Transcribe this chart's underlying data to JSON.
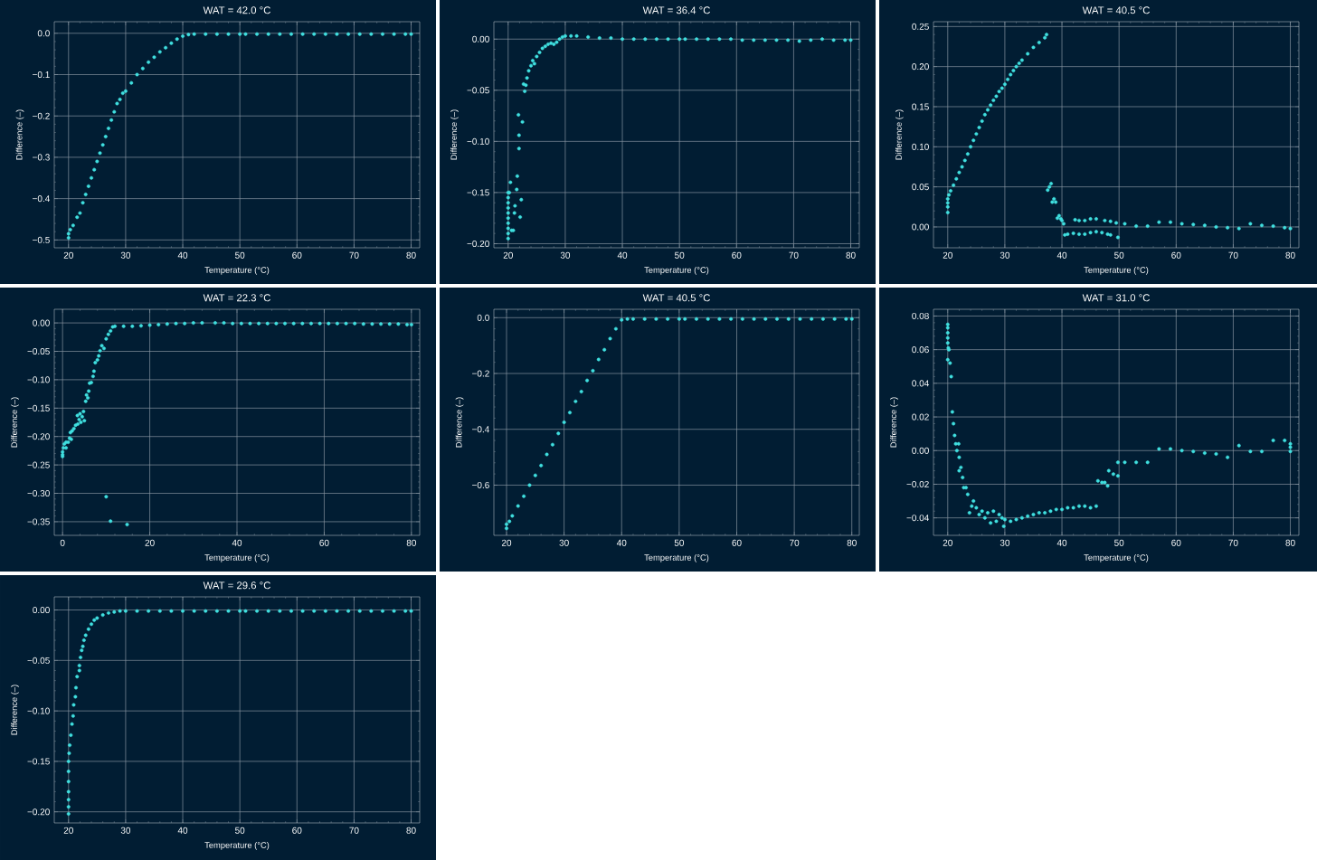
{
  "chart_data": [
    {
      "type": "scatter",
      "title": "WAT = 42.0 °C",
      "xlabel": "Temperature (°C)",
      "ylabel": "Difference (–)",
      "color": "#40e0e0",
      "marker": "circle",
      "grid": true,
      "xlim": [
        17.5,
        81.5
      ],
      "ylim": [
        -0.519,
        0.028
      ],
      "xticks": [
        20,
        30,
        40,
        50,
        60,
        70,
        80
      ],
      "yticks": [
        {
          "value": -0.5,
          "label": "−0.5"
        },
        {
          "value": -0.4,
          "label": "−0.4"
        },
        {
          "value": -0.3,
          "label": "−0.3"
        },
        {
          "value": -0.2,
          "label": "−0.2"
        },
        {
          "value": -0.1,
          "label": "−0.1"
        },
        {
          "value": 0,
          "label": "0.0"
        }
      ],
      "x": [
        20,
        20,
        20.3,
        20.8,
        21.5,
        22,
        22.5,
        23,
        23.5,
        24,
        24.5,
        25,
        25.5,
        26,
        26.5,
        27,
        27.5,
        28,
        28.5,
        29,
        29.5,
        30,
        31,
        32,
        33,
        34,
        35,
        36,
        37,
        38,
        39,
        40,
        41,
        42,
        44,
        46,
        48,
        50,
        51,
        53,
        55,
        57,
        59,
        61,
        63,
        65,
        67,
        69,
        71,
        73,
        75,
        77,
        79,
        80
      ],
      "values": [
        -0.495,
        -0.485,
        -0.475,
        -0.465,
        -0.445,
        -0.435,
        -0.41,
        -0.39,
        -0.37,
        -0.35,
        -0.33,
        -0.31,
        -0.29,
        -0.27,
        -0.25,
        -0.23,
        -0.21,
        -0.19,
        -0.17,
        -0.16,
        -0.145,
        -0.14,
        -0.12,
        -0.1,
        -0.085,
        -0.07,
        -0.058,
        -0.045,
        -0.035,
        -0.024,
        -0.014,
        -0.007,
        -0.003,
        -0.002,
        -0.002,
        -0.002,
        -0.002,
        -0.002,
        -0.002,
        -0.002,
        -0.002,
        -0.002,
        -0.002,
        -0.002,
        -0.002,
        -0.002,
        -0.002,
        -0.002,
        -0.002,
        -0.002,
        -0.002,
        -0.002,
        -0.002,
        -0.002
      ]
    },
    {
      "type": "scatter",
      "title": "WAT = 36.4 °C",
      "xlabel": "Temperature (°C)",
      "ylabel": "Difference (–)",
      "color": "#40e0e0",
      "marker": "circle",
      "grid": true,
      "xlim": [
        17.5,
        81.5
      ],
      "ylim": [
        -0.204,
        0.017
      ],
      "xticks": [
        20,
        30,
        40,
        50,
        60,
        70,
        80
      ],
      "yticks": [
        {
          "value": -0.2,
          "label": "−0.20"
        },
        {
          "value": -0.15,
          "label": "−0.15"
        },
        {
          "value": -0.1,
          "label": "−0.10"
        },
        {
          "value": -0.05,
          "label": "−0.05"
        },
        {
          "value": 0,
          "label": "0.00"
        }
      ],
      "x": [
        20,
        20,
        20,
        20,
        20,
        20,
        20,
        20,
        20,
        20,
        20.2,
        20.4,
        20.6,
        20.9,
        21.1,
        21.2,
        21.5,
        21.6,
        21.8,
        21.9,
        21.9,
        22.1,
        22.3,
        22.5,
        22.7,
        22.9,
        23.1,
        23.3,
        23.6,
        24,
        24.3,
        24.6,
        25,
        25.5,
        26,
        26.5,
        27,
        27.5,
        28,
        28.5,
        29,
        29.5,
        30,
        31,
        32,
        34,
        36,
        38,
        40,
        42,
        44,
        46,
        48,
        50,
        51,
        53,
        55,
        57,
        59,
        61,
        63,
        65,
        67,
        69,
        71,
        73,
        75,
        77,
        79,
        80
      ],
      "values": [
        -0.195,
        -0.19,
        -0.185,
        -0.18,
        -0.175,
        -0.17,
        -0.165,
        -0.16,
        -0.155,
        -0.15,
        -0.15,
        -0.14,
        -0.187,
        -0.187,
        -0.17,
        -0.163,
        -0.147,
        -0.134,
        -0.074,
        -0.094,
        -0.107,
        -0.174,
        -0.157,
        -0.081,
        -0.044,
        -0.051,
        -0.045,
        -0.038,
        -0.031,
        -0.026,
        -0.021,
        -0.024,
        -0.017,
        -0.013,
        -0.009,
        -0.007,
        -0.005,
        -0.004,
        -0.005,
        -0.003,
        0,
        0.002,
        0.003,
        0.003,
        0.003,
        0.002,
        0.001,
        0.001,
        0,
        0,
        0,
        0,
        0,
        0,
        0,
        0,
        0,
        0,
        0,
        -0.001,
        -0.001,
        -0.001,
        -0.001,
        -0.001,
        -0.002,
        -0.001,
        0,
        -0.001,
        -0.001,
        -0.001
      ]
    },
    {
      "type": "scatter",
      "title": "WAT = 40.5 °C",
      "xlabel": "Temperature (°C)",
      "ylabel": "Difference (–)",
      "color": "#40e0e0",
      "marker": "circle",
      "grid": true,
      "xlim": [
        17.5,
        81.5
      ],
      "ylim": [
        -0.026,
        0.256
      ],
      "xticks": [
        20,
        30,
        40,
        50,
        60,
        70,
        80
      ],
      "yticks": [
        {
          "value": 0,
          "label": "0.00"
        },
        {
          "value": 0.05,
          "label": "0.05"
        },
        {
          "value": 0.1,
          "label": "0.10"
        },
        {
          "value": 0.15,
          "label": "0.15"
        },
        {
          "value": 0.2,
          "label": "0.20"
        },
        {
          "value": 0.25,
          "label": "0.25"
        }
      ],
      "x": [
        20,
        20,
        20,
        20,
        20.2,
        20.5,
        21,
        21.5,
        22,
        22.5,
        23,
        23.5,
        24,
        24.5,
        25,
        25.5,
        26,
        26.5,
        27,
        27.5,
        28,
        28.5,
        29,
        29.5,
        30,
        30.5,
        31,
        31.5,
        32,
        32.5,
        33,
        34,
        35,
        36,
        37,
        37.3,
        37.5,
        37.8,
        38.1,
        38.3,
        38.6,
        38.9,
        39.2,
        39.5,
        39.8,
        40,
        40.3,
        42.3,
        43,
        44,
        45,
        46,
        47.5,
        48.5,
        49.5,
        40.5,
        41,
        42,
        43,
        44,
        45,
        46,
        47,
        48,
        48.5,
        49.8,
        51,
        53,
        55,
        57,
        59,
        61,
        63,
        65,
        67,
        69,
        71,
        73,
        75,
        77,
        79,
        80
      ],
      "values": [
        0.018,
        0.025,
        0.03,
        0.035,
        0.04,
        0.045,
        0.052,
        0.06,
        0.068,
        0.075,
        0.083,
        0.091,
        0.1,
        0.108,
        0.116,
        0.124,
        0.132,
        0.14,
        0.146,
        0.152,
        0.158,
        0.163,
        0.169,
        0.173,
        0.178,
        0.184,
        0.19,
        0.195,
        0.2,
        0.204,
        0.208,
        0.216,
        0.224,
        0.23,
        0.236,
        0.24,
        0.046,
        0.05,
        0.054,
        0.031,
        0.035,
        0.031,
        0.011,
        0.014,
        0.01,
        0.008,
        0.004,
        0.009,
        0.008,
        0.008,
        0.01,
        0.01,
        0.008,
        0.007,
        0.005,
        -0.01,
        -0.009,
        -0.008,
        -0.009,
        -0.009,
        -0.007,
        -0.006,
        -0.007,
        -0.009,
        -0.01,
        -0.013,
        0.004,
        0.001,
        0.001,
        0.006,
        0.006,
        0.004,
        0.003,
        0.002,
        0,
        -0.001,
        -0.002,
        0.004,
        0.002,
        0.001,
        -0.001,
        -0.002
      ]
    },
    {
      "type": "scatter",
      "title": "WAT = 22.3 °C",
      "xlabel": "Temperature (°C)",
      "ylabel": "Difference (–)",
      "color": "#40e0e0",
      "marker": "circle",
      "grid": true,
      "xlim": [
        -1.9,
        81.9
      ],
      "ylim": [
        -0.374,
        0.024
      ],
      "xticks": [
        0,
        20,
        40,
        60,
        80
      ],
      "yticks": [
        {
          "value": -0.35,
          "label": "−0.35"
        },
        {
          "value": -0.3,
          "label": "−0.30"
        },
        {
          "value": -0.25,
          "label": "−0.25"
        },
        {
          "value": -0.2,
          "label": "−0.20"
        },
        {
          "value": -0.15,
          "label": "−0.15"
        },
        {
          "value": -0.1,
          "label": "−0.10"
        },
        {
          "value": -0.05,
          "label": "−0.05"
        },
        {
          "value": 0,
          "label": "0.00"
        }
      ],
      "x": [
        0,
        0,
        0,
        0.2,
        0.4,
        0.8,
        0.8,
        1.3,
        1.6,
        1.8,
        2,
        2.2,
        2.6,
        3,
        3.4,
        3.5,
        3.8,
        4,
        4.2,
        4.5,
        4.8,
        5,
        5.3,
        5.5,
        5.8,
        6,
        6.2,
        6.6,
        7,
        7.2,
        7.5,
        8,
        8.3,
        8.6,
        9,
        9.5,
        10,
        10,
        10.5,
        11,
        11,
        11.5,
        12,
        14,
        14.8,
        16,
        18,
        20,
        22,
        24,
        26,
        28,
        30,
        32,
        35,
        37,
        39,
        41,
        43,
        45,
        47,
        49,
        51,
        53,
        55,
        57,
        59,
        61,
        63,
        65,
        67,
        69,
        71,
        73,
        75,
        77,
        79,
        80
      ],
      "values": [
        -0.227,
        -0.232,
        -0.235,
        -0.22,
        -0.213,
        -0.21,
        -0.22,
        -0.21,
        -0.203,
        -0.193,
        -0.205,
        -0.19,
        -0.186,
        -0.18,
        -0.163,
        -0.178,
        -0.17,
        -0.16,
        -0.175,
        -0.165,
        -0.156,
        -0.172,
        -0.138,
        -0.127,
        -0.132,
        -0.12,
        -0.106,
        -0.105,
        -0.094,
        -0.085,
        -0.07,
        -0.065,
        -0.058,
        -0.049,
        -0.04,
        -0.045,
        -0.028,
        -0.306,
        -0.02,
        -0.014,
        -0.349,
        -0.007,
        -0.006,
        -0.006,
        -0.355,
        -0.006,
        -0.005,
        -0.004,
        -0.003,
        -0.002,
        -0.001,
        -0.001,
        0,
        0,
        0,
        0,
        -0.001,
        -0.001,
        -0.001,
        -0.001,
        -0.001,
        -0.001,
        -0.001,
        -0.001,
        -0.001,
        -0.001,
        -0.001,
        -0.001,
        -0.001,
        -0.001,
        -0.001,
        -0.002,
        -0.002,
        -0.002,
        -0.002,
        -0.002,
        -0.003,
        -0.003
      ]
    },
    {
      "type": "scatter",
      "title": "WAT = 40.5 °C",
      "xlabel": "Temperature (°C)",
      "ylabel": "Difference (–)",
      "color": "#40e0e0",
      "marker": "circle",
      "grid": true,
      "xlim": [
        17.8,
        81.3
      ],
      "ylim": [
        -0.78,
        0.03
      ],
      "xticks": [
        20,
        30,
        40,
        50,
        60,
        70,
        80
      ],
      "yticks": [
        {
          "value": -0.6,
          "label": "−0.6"
        },
        {
          "value": -0.4,
          "label": "−0.4"
        },
        {
          "value": -0.2,
          "label": "−0.2"
        },
        {
          "value": 0,
          "label": "0.0"
        }
      ],
      "x": [
        20,
        20,
        20.5,
        21,
        22,
        23,
        24,
        25,
        26,
        27,
        28,
        29,
        30,
        31,
        32,
        33,
        34,
        35,
        36,
        37,
        38,
        39,
        40,
        41,
        42,
        44,
        46,
        48,
        50,
        51,
        53,
        55,
        57,
        59,
        61,
        63,
        65,
        67,
        69,
        71,
        73,
        75,
        77,
        79,
        80
      ],
      "values": [
        -0.755,
        -0.74,
        -0.73,
        -0.71,
        -0.675,
        -0.64,
        -0.6,
        -0.565,
        -0.53,
        -0.49,
        -0.455,
        -0.415,
        -0.375,
        -0.34,
        -0.3,
        -0.265,
        -0.225,
        -0.19,
        -0.15,
        -0.115,
        -0.075,
        -0.04,
        -0.008,
        -0.005,
        -0.005,
        -0.005,
        -0.005,
        -0.005,
        -0.005,
        -0.005,
        -0.005,
        -0.005,
        -0.005,
        -0.005,
        -0.005,
        -0.005,
        -0.005,
        -0.005,
        -0.005,
        -0.005,
        -0.005,
        -0.005,
        -0.005,
        -0.005,
        -0.005
      ]
    },
    {
      "type": "scatter",
      "title": "WAT = 31.0 °C",
      "xlabel": "Temperature (°C)",
      "ylabel": "Difference (–)",
      "color": "#40e0e0",
      "marker": "circle",
      "grid": true,
      "xlim": [
        17.5,
        81.5
      ],
      "ylim": [
        -0.0504,
        0.084
      ],
      "xticks": [
        20,
        30,
        40,
        50,
        60,
        70,
        80
      ],
      "yticks": [
        {
          "value": -0.04,
          "label": "−0.04"
        },
        {
          "value": -0.02,
          "label": "−0.02"
        },
        {
          "value": 0,
          "label": "0.00"
        },
        {
          "value": 0.02,
          "label": "0.02"
        },
        {
          "value": 0.04,
          "label": "0.04"
        },
        {
          "value": 0.06,
          "label": "0.06"
        },
        {
          "value": 0.08,
          "label": "0.08"
        }
      ],
      "x": [
        20,
        20,
        20,
        20,
        20,
        20.1,
        20.2,
        20,
        20.4,
        20.6,
        20.8,
        21,
        21.2,
        21.4,
        21.6,
        21.9,
        22,
        22,
        22.3,
        22.6,
        22.8,
        23.2,
        23.5,
        23.8,
        24.2,
        24.5,
        25,
        25.5,
        26,
        26.5,
        27,
        27.5,
        28,
        28.5,
        29,
        29.5,
        29.8,
        30,
        31,
        32,
        33,
        34,
        35,
        36,
        37,
        38,
        39,
        40,
        41,
        42,
        43,
        44,
        45,
        46,
        46.3,
        47,
        47.5,
        48,
        48.2,
        49,
        49.8,
        49.8,
        51,
        53,
        55,
        57,
        59,
        61,
        63,
        65,
        67,
        69,
        71,
        73,
        75,
        77,
        79,
        80,
        80,
        80
      ],
      "values": [
        0.075,
        0.073,
        0.07,
        0.067,
        0.064,
        0.061,
        0.06,
        0.054,
        0.052,
        0.044,
        0.023,
        0.016,
        0.009,
        0.004,
        0,
        0.004,
        -0.004,
        -0.012,
        -0.01,
        -0.016,
        -0.022,
        -0.022,
        -0.026,
        -0.037,
        -0.033,
        -0.03,
        -0.034,
        -0.038,
        -0.036,
        -0.04,
        -0.037,
        -0.043,
        -0.036,
        -0.042,
        -0.038,
        -0.04,
        -0.045,
        -0.041,
        -0.042,
        -0.041,
        -0.04,
        -0.039,
        -0.038,
        -0.037,
        -0.037,
        -0.036,
        -0.035,
        -0.035,
        -0.034,
        -0.034,
        -0.033,
        -0.033,
        -0.034,
        -0.033,
        -0.018,
        -0.019,
        -0.019,
        -0.021,
        -0.012,
        -0.014,
        -0.015,
        -0.007,
        -0.007,
        -0.007,
        -0.007,
        0.001,
        0.001,
        0,
        -0.0005,
        -0.0015,
        -0.002,
        -0.004,
        0.003,
        -0.0005,
        -0.0005,
        0.006,
        0.006,
        0.004,
        0.002,
        -0.0005
      ]
    },
    {
      "type": "scatter",
      "title": "WAT = 29.6 °C",
      "xlabel": "Temperature (°C)",
      "ylabel": "Difference (–)",
      "color": "#40e0e0",
      "marker": "circle",
      "grid": true,
      "xlim": [
        17.5,
        81.5
      ],
      "ylim": [
        -0.211,
        0.013
      ],
      "xticks": [
        20,
        30,
        40,
        50,
        60,
        70,
        80
      ],
      "yticks": [
        {
          "value": -0.2,
          "label": "−0.20"
        },
        {
          "value": -0.15,
          "label": "−0.15"
        },
        {
          "value": -0.1,
          "label": "−0.10"
        },
        {
          "value": -0.05,
          "label": "−0.05"
        },
        {
          "value": 0,
          "label": "0.00"
        }
      ],
      "x": [
        20,
        20,
        20,
        20,
        20,
        20,
        20,
        20.1,
        20.2,
        20.4,
        20.6,
        20.8,
        20.9,
        21.2,
        21.3,
        21.5,
        21.9,
        21.9,
        22.1,
        22.3,
        22.5,
        22.7,
        23,
        23.5,
        24,
        24.5,
        25,
        26,
        27,
        28,
        29,
        30,
        32,
        34,
        36,
        38,
        40,
        42,
        44,
        46,
        48,
        50,
        51,
        53,
        55,
        57,
        59,
        61,
        63,
        65,
        67,
        69,
        71,
        73,
        75,
        77,
        79,
        80
      ],
      "values": [
        -0.202,
        -0.195,
        -0.188,
        -0.18,
        -0.17,
        -0.16,
        -0.15,
        -0.142,
        -0.134,
        -0.124,
        -0.113,
        -0.105,
        -0.094,
        -0.086,
        -0.077,
        -0.066,
        -0.06,
        -0.055,
        -0.047,
        -0.04,
        -0.036,
        -0.03,
        -0.025,
        -0.019,
        -0.014,
        -0.01,
        -0.008,
        -0.005,
        -0.003,
        -0.002,
        -0.001,
        -0.001,
        -0.001,
        -0.001,
        -0.001,
        -0.001,
        -0.001,
        -0.001,
        -0.001,
        -0.001,
        -0.001,
        -0.001,
        -0.001,
        -0.001,
        -0.001,
        -0.001,
        -0.001,
        -0.001,
        -0.001,
        -0.001,
        -0.001,
        -0.001,
        -0.001,
        -0.001,
        -0.001,
        -0.001,
        -0.001,
        -0.001
      ]
    }
  ]
}
